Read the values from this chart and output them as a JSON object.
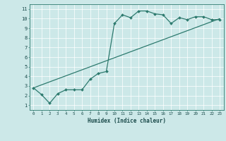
{
  "xlabel": "Humidex (Indice chaleur)",
  "ylabel": "",
  "bg_color": "#cce8e8",
  "line_color": "#2d7a6e",
  "xlim": [
    -0.5,
    23.5
  ],
  "ylim": [
    0.5,
    11.5
  ],
  "xticks": [
    0,
    1,
    2,
    3,
    4,
    5,
    6,
    7,
    8,
    9,
    10,
    11,
    12,
    13,
    14,
    15,
    16,
    17,
    18,
    19,
    20,
    21,
    22,
    23
  ],
  "yticks": [
    1,
    2,
    3,
    4,
    5,
    6,
    7,
    8,
    9,
    10,
    11
  ],
  "curve_x": [
    0,
    1,
    2,
    3,
    4,
    5,
    6,
    7,
    8,
    9,
    10,
    11,
    12,
    13,
    14,
    15,
    16,
    17,
    18,
    19,
    20,
    21,
    22,
    23
  ],
  "curve_y": [
    2.8,
    2.1,
    1.2,
    2.2,
    2.6,
    2.6,
    2.6,
    3.7,
    4.3,
    4.5,
    9.5,
    10.4,
    10.1,
    10.8,
    10.8,
    10.5,
    10.4,
    9.5,
    10.1,
    9.9,
    10.2,
    10.2,
    9.9,
    9.9
  ],
  "line_x": [
    0,
    23
  ],
  "line_y": [
    2.8,
    10.0
  ]
}
